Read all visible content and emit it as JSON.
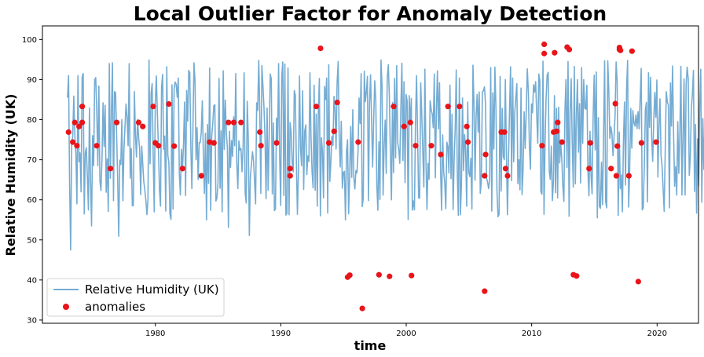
{
  "chart_data": {
    "type": "line",
    "title": "Local Outlier Factor for Anomaly Detection",
    "xlabel": "time",
    "ylabel": "Relative Humidity (UK)",
    "xlim": [
      1971.0,
      2023.3
    ],
    "ylim": [
      29.2,
      103.4
    ],
    "x_ticks": [
      1980,
      1990,
      2000,
      2010,
      2020
    ],
    "y_ticks": [
      30,
      40,
      50,
      60,
      70,
      80,
      90,
      100
    ],
    "grid": false,
    "legend_position": "lower-left",
    "series": [
      {
        "name": "Relative Humidity (UK)",
        "kind": "line",
        "color": "#75acd3",
        "x_start": 1973.0,
        "x_end": 2020.83,
        "x_step": 0.0833,
        "typical_range": [
          48,
          96
        ],
        "mean": 73,
        "values": [
          85.5,
          91.0,
          64.0,
          47.5,
          73.8,
          76.0,
          85.9,
          76.0,
          71.5,
          59.0,
          91.0,
          69.5,
          71.7,
          62.0,
          90.7,
          91.5,
          56.5,
          71.7,
          73.0,
          65.8,
          57.5,
          82.9,
          65.0,
          53.5,
          76.0,
          68.5,
          90.0,
          90.5,
          82.0,
          68.5,
          88.4,
          64.7,
          62.3,
          70.2,
          84.2,
          73.3,
          83.6,
          61.9,
          70.2,
          57.1,
          94.0,
          65.4,
          81.7,
          94.2,
          59.8,
          87.0,
          86.7,
          76.3,
          65.2,
          50.9,
          69.9,
          68.8,
          80.0,
          59.8,
          72.6,
          78.3,
          83.9,
          80.4,
          73.5,
          94.0,
          65.4,
          72.8,
          58.5,
          58.6,
          87.0,
          76.0,
          70.7,
          80.1,
          75.7,
          72.7,
          61.3,
          73.4,
          68.9,
          64.5,
          62.4,
          59.8,
          56.3,
          60.1,
          94.9,
          69.0,
          86.6,
          89.0,
          70.8,
          57.0,
          84.6,
          90.9,
          81.4,
          72.9,
          62.4,
          58.4,
          88.1,
          91.3,
          72.6,
          75.9,
          57.2,
          93.2,
          71.1,
          69.3,
          56.5,
          55.1,
          88.7,
          57.7,
          87.7,
          89.4,
          88.8,
          85.6,
          90.4,
          66.7,
          61.2,
          72.6,
          67.5,
          73.8,
          84.4,
          61.1,
          87.3,
          79.6,
          92.3,
          91.7,
          73.6,
          62.8,
          77.3,
          94.2,
          89.8,
          70.0,
          78.0,
          65.1,
          74.3,
          74.3,
          76.9,
          84.7,
          71.3,
          61.6,
          76.6,
          55.0,
          78.8,
          64.1,
          92.9,
          57.4,
          76.0,
          79.0,
          83.5,
          83.7,
          59.7,
          60.4,
          64.1,
          90.3,
          62.9,
          77.2,
          57.0,
          92.2,
          72.6,
          84.9,
          76.7,
          72.9,
          53.1,
          77.1,
          68.1,
          74.8,
          70.8,
          80.7,
          73.5,
          91.5,
          69.1,
          62.8,
          74.7,
          72.4,
          72.8,
          67.0,
          73.2,
          91.7,
          61.7,
          59.2,
          84.6,
          75.2,
          51.1,
          65.9,
          68.8,
          72.0,
          69.8,
          64.7,
          59.0,
          84.2,
          82.3,
          94.8,
          81.9,
          61.6,
          93.5,
          88.5,
          83.1,
          75.7,
          60.3,
          82.9,
          62.4,
          75.7,
          91.4,
          90.2,
          61.5,
          79.2,
          57.3,
          57.7,
          80.4,
          74.2,
          94.0,
          71.0,
          58.6,
          90.8,
          94.4,
          61.1,
          93.9,
          56.2,
          56.6,
          92.9,
          56.3,
          79.3,
          76.8,
          69.3,
          67.0,
          87.3,
          86.1,
          69.6,
          56.4,
          67.1,
          90.9,
          72.7,
          68.5,
          87.2,
          62.6,
          77.1,
          78.7,
          66.3,
          71.0,
          69.6,
          91.7,
          75.7,
          67.2,
          63.0,
          88.6,
          62.4,
          81.4,
          58.4,
          81.4,
          90.3,
          56.0,
          75.5,
          72.0,
          60.5,
          88.3,
          85.0,
          90.4,
          56.7,
          93.7,
          64.6,
          69.0,
          75.8,
          73.6,
          85.8,
          82.7,
          72.7,
          89.2,
          94.5,
          75.7,
          68.2,
          79.6,
          62.9,
          66.8,
          67.1,
          55.0,
          72.1,
          75.0,
          56.5,
          66.1,
          78.3,
          65.6,
          82.5,
          65.6,
          62.7,
          67.3,
          66.7,
          71.9,
          85.4,
          79.0,
          91.5,
          58.3,
          60.2,
          92.1,
          84.5,
          86.8,
          90.8,
          59.8,
          83.8,
          91.2,
          79.7,
          68.2,
          80.2,
          89.7,
          85.1,
          63.7,
          57.4,
          74.5,
          60.1,
          94.9,
          88.4,
          61.2,
          73.5,
          79.9,
          66.6,
          90.6,
          93.7,
          85.8,
          70.9,
          60.0,
          84.3,
          66.8,
          90.3,
          70.5,
          93.5,
          74.3,
          72.5,
          69.1,
          82.8,
          94.1,
          69.8,
          89.5,
          64.3,
          86.3,
          84.7,
          55.1,
          86.0,
          78.9,
          85.3,
          57.4,
          59.7,
          57.5,
          79.2,
          91.0,
          76.5,
          60.5,
          60.4,
          89.2,
          81.5,
          72.0,
          63.2,
          92.6,
          69.9,
          57.6,
          69.1,
          65.1,
          84.7,
          82.6,
          81.4,
          78.0,
          91.4,
          65.5,
          82.2,
          92.2,
          77.7,
          89.2,
          67.5,
          57.4,
          76.2,
          66.9,
          64.3,
          57.8,
          74.4,
          73.3,
          66.7,
          88.6,
          65.3,
          81.4,
          57.6,
          70.3,
          77.7,
          92.4,
          67.1,
          56.1,
          90.4,
          56.3,
          64.1,
          85.4,
          67.3,
          76.3,
          72.4,
          58.4,
          84.4,
          66.8,
          65.8,
          70.4,
          57.7,
          93.6,
          83.8,
          64.9,
          80.8,
          86.3,
          76.9,
          86.9,
          61.6,
          64.5,
          86.9,
          87.2,
          88.2,
          84.1,
          65.4,
          64.4,
          62.8,
          65.2,
          93.0,
          57.2,
          86.7,
          72.7,
          93.1,
          83.0,
          62.0,
          55.8,
          56.4,
          90.8,
          62.2,
          82.8,
          70.8,
          70.0,
          90.0,
          72.1,
          56.3,
          70.2,
          82.4,
          93.2,
          64.8,
          90.4,
          69.5,
          81.8,
          85.4,
          89.0,
          64.0,
          70.0,
          62.5,
          87.9,
          61.3,
          67.9,
          82.0,
          72.8,
          82.3,
          92.7,
          87.1,
          73.5,
          67.6,
          83.9,
          81.7,
          88.7,
          86.9,
          89.5,
          81.4,
          74.1,
          91.4,
          89.7,
          62.1,
          61.4,
          94.6,
          56.4,
          74.4,
          85.5,
          91.1,
          91.8,
          67.2,
          65.1,
          73.4,
          59.8,
          64.6,
          86.0,
          61.8,
          82.8,
          60.5,
          83.1,
          69.2,
          74.0,
          70.3,
          63.5,
          59.6,
          82.1,
          90.0,
          68.1,
          94.5,
          55.9,
          82.0,
          90.2,
          74.2,
          63.2,
          93.3,
          64.0,
          81.2,
          90.0,
          71.9,
          84.0,
          64.2,
          93.0,
          74.1,
          90.0,
          82.9,
          82.6,
          88.6,
          67.2,
          61.0,
          77.1,
          66.1,
          61.5,
          80.6,
          91.1,
          72.5,
          91.9,
          55.5,
          80.5,
          58.3,
          57.9,
          69.4,
          58.8,
          76.3,
          94.7,
          59.5,
          58.0,
          94.7,
          87.1,
          75.3,
          78.2,
          76.5,
          71.0,
          75.7,
          81.1,
          94.4,
          89.6,
          56.1,
          76.9,
          62.8,
          66.2,
          57.0,
          74.6,
          84.4,
          63.7,
          87.6,
          94.8,
          58.2,
          68.0,
          82.8,
          72.9,
          82.3,
          79.3,
          78.4,
          81.2,
          77.8,
          82.0,
          77.7,
          85.1,
          92.8,
          57.5,
          58.0,
          68.8,
          82.6,
          84.3,
          59.5,
          91.7,
          78.1,
          90.6,
          75.9,
          69.6,
          79.6,
          86.8,
          80.6,
          89.9,
          65.7,
          78.4,
          85.2,
          71.1,
          68.3,
          62.7,
          57.1,
          72.2,
          87.0,
          84.4,
          83.7,
          58.0,
          89.2,
          78.4,
          93.4,
          76.6,
          63.4,
          68.3,
          61.2,
          79.5,
          66.6,
          76.4,
          93.3,
          61.2,
          75.1,
          90.2,
          61.2,
          88.8,
          93.1,
          90.3,
          66.1,
          70.4,
          82.7,
          86.3,
          92.3,
          62.1,
          78.8,
          56.7,
          75.2,
          63.5,
          83.1,
          92.6,
          59.4,
          80.3,
          67.6,
          79.4,
          92.6,
          62.3,
          61.9,
          64.7,
          81.2,
          56.4,
          76.1,
          87.7,
          91.0,
          79.0,
          75.1,
          93.9,
          74.2,
          62.0,
          63.9,
          64.5,
          93.5,
          80.4,
          87.5,
          88.5,
          67.2,
          67.2,
          69.8,
          76.4,
          56.2,
          70.5,
          94.5,
          71.9,
          69.5,
          92.3,
          62.3,
          90.3,
          80.1,
          73.8,
          56.0,
          75.7,
          92.5,
          91.4,
          62.1,
          70.6,
          77.9,
          58.7,
          89.5,
          94.5,
          81.6,
          77.3,
          58.8,
          93.9,
          82.5,
          67.4,
          84.1,
          85.7,
          93.7,
          58.2,
          55.1,
          68.9,
          63.6,
          83.8,
          71.9,
          68.1,
          58.5,
          91.0,
          75.9
        ]
      },
      {
        "name": "anomalies",
        "kind": "scatter",
        "color": "#e8141a",
        "points": [
          [
            1973.08,
            76.9
          ],
          [
            1973.42,
            74.4
          ],
          [
            1973.58,
            79.3
          ],
          [
            1973.75,
            73.5
          ],
          [
            1973.92,
            78.3
          ],
          [
            1974.17,
            83.3
          ],
          [
            1974.17,
            79.3
          ],
          [
            1975.33,
            73.5
          ],
          [
            1976.42,
            67.8
          ],
          [
            1976.92,
            79.3
          ],
          [
            1978.67,
            79.3
          ],
          [
            1979.0,
            78.3
          ],
          [
            1979.83,
            83.3
          ],
          [
            1980.0,
            74.2
          ],
          [
            1980.25,
            73.5
          ],
          [
            1981.08,
            83.9
          ],
          [
            1981.5,
            73.4
          ],
          [
            1982.17,
            67.8
          ],
          [
            1983.67,
            66.0
          ],
          [
            1984.33,
            74.4
          ],
          [
            1984.67,
            74.2
          ],
          [
            1985.83,
            79.3
          ],
          [
            1986.25,
            79.3
          ],
          [
            1986.83,
            79.3
          ],
          [
            1988.33,
            76.9
          ],
          [
            1988.42,
            73.5
          ],
          [
            1989.67,
            74.2
          ],
          [
            1990.75,
            67.8
          ],
          [
            1990.75,
            66.0
          ],
          [
            1992.83,
            83.3
          ],
          [
            1993.17,
            97.8
          ],
          [
            1993.83,
            74.2
          ],
          [
            1994.25,
            77.1
          ],
          [
            1994.5,
            84.3
          ],
          [
            1995.33,
            40.7
          ],
          [
            1995.5,
            41.2
          ],
          [
            1996.17,
            74.4
          ],
          [
            1996.5,
            32.9
          ],
          [
            1997.83,
            41.3
          ],
          [
            1998.67,
            40.9
          ],
          [
            1999.0,
            83.3
          ],
          [
            1999.83,
            78.3
          ],
          [
            2000.33,
            79.3
          ],
          [
            2000.42,
            41.1
          ],
          [
            2000.75,
            73.5
          ],
          [
            2002.0,
            73.5
          ],
          [
            2002.75,
            71.3
          ],
          [
            2003.33,
            83.3
          ],
          [
            2004.25,
            83.3
          ],
          [
            2004.83,
            78.3
          ],
          [
            2004.92,
            74.4
          ],
          [
            2006.25,
            37.2
          ],
          [
            2006.33,
            71.3
          ],
          [
            2006.25,
            66.0
          ],
          [
            2007.58,
            76.9
          ],
          [
            2007.83,
            76.9
          ],
          [
            2007.92,
            67.8
          ],
          [
            2008.08,
            66.0
          ],
          [
            2010.83,
            73.5
          ],
          [
            2011.0,
            98.8
          ],
          [
            2011.0,
            96.5
          ],
          [
            2011.75,
            76.9
          ],
          [
            2011.83,
            96.7
          ],
          [
            2012.0,
            77.1
          ],
          [
            2012.08,
            79.3
          ],
          [
            2012.42,
            74.4
          ],
          [
            2012.83,
            98.1
          ],
          [
            2013.0,
            97.5
          ],
          [
            2013.33,
            41.3
          ],
          [
            2013.58,
            41.0
          ],
          [
            2014.58,
            67.8
          ],
          [
            2014.67,
            74.2
          ],
          [
            2016.33,
            67.8
          ],
          [
            2016.67,
            84.0
          ],
          [
            2016.75,
            66.0
          ],
          [
            2016.83,
            73.4
          ],
          [
            2017.0,
            98.0
          ],
          [
            2017.0,
            97.5
          ],
          [
            2017.08,
            97.3
          ],
          [
            2017.75,
            66.0
          ],
          [
            2018.0,
            97.1
          ],
          [
            2018.5,
            39.6
          ],
          [
            2018.75,
            74.2
          ],
          [
            2019.92,
            74.4
          ]
        ]
      }
    ]
  }
}
